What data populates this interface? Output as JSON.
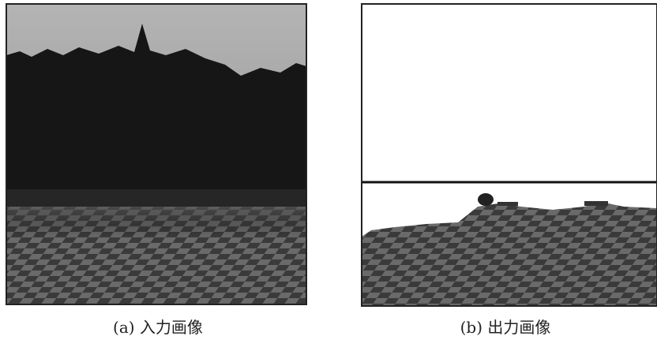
{
  "figure": {
    "panels": [
      {
        "caption": "(a) 入力画像"
      },
      {
        "caption": "(b) 出力画像"
      }
    ]
  }
}
